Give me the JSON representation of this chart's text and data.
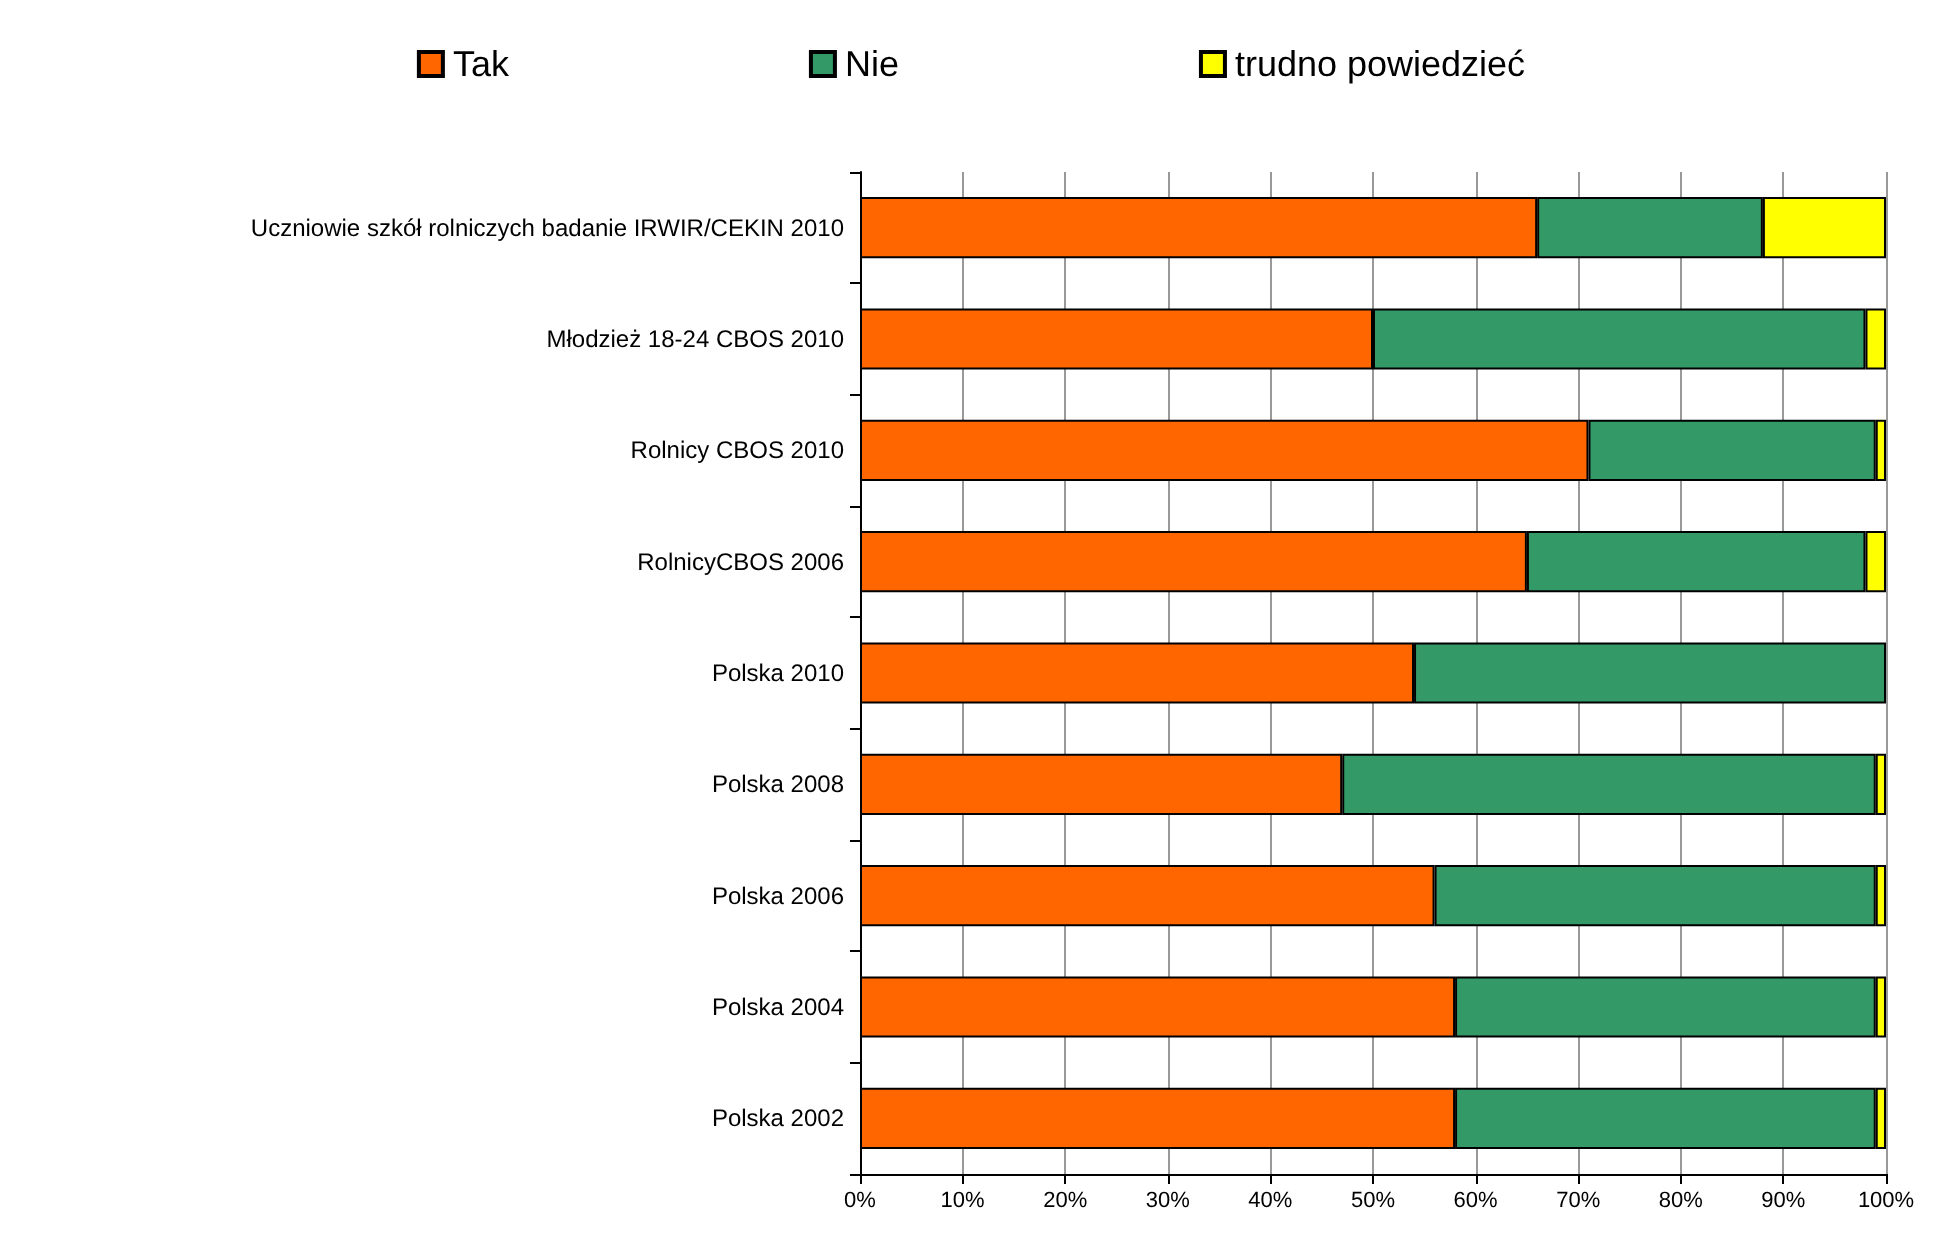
{
  "chart_data": {
    "type": "bar",
    "orientation": "horizontal",
    "stacked": true,
    "categories": [
      "Uczniowie szkół rolniczych badanie IRWIR/CEKIN 2010",
      "Młodzież 18-24 CBOS 2010",
      "Rolnicy CBOS 2010",
      "RolnicyCBOS 2006",
      "Polska 2010",
      "Polska 2008",
      "Polska 2006",
      "Polska 2004",
      "Polska 2002"
    ],
    "series": [
      {
        "name": "Tak",
        "color": "#ff6600",
        "values": [
          66,
          50,
          71,
          65,
          54,
          47,
          56,
          58,
          58
        ]
      },
      {
        "name": "Nie",
        "color": "#339966",
        "values": [
          22,
          48,
          28,
          33,
          46,
          52,
          43,
          41,
          41
        ]
      },
      {
        "name": "trudno powiedzieć",
        "color": "#ffff00",
        "values": [
          12,
          2,
          1,
          2,
          null,
          1,
          1,
          1,
          1
        ]
      }
    ],
    "xlim": [
      0,
      100
    ],
    "xticks": [
      {
        "value": 0,
        "label": "0%"
      },
      {
        "value": 10,
        "label": "10%"
      },
      {
        "value": 20,
        "label": "20%"
      },
      {
        "value": 30,
        "label": "30%"
      },
      {
        "value": 40,
        "label": "40%"
      },
      {
        "value": 50,
        "label": "50%"
      },
      {
        "value": 60,
        "label": "60%"
      },
      {
        "value": 70,
        "label": "70%"
      },
      {
        "value": 80,
        "label": "80%"
      },
      {
        "value": 90,
        "label": "90%"
      },
      {
        "value": 100,
        "label": "100%"
      }
    ],
    "grid": "x",
    "legend": "top"
  }
}
